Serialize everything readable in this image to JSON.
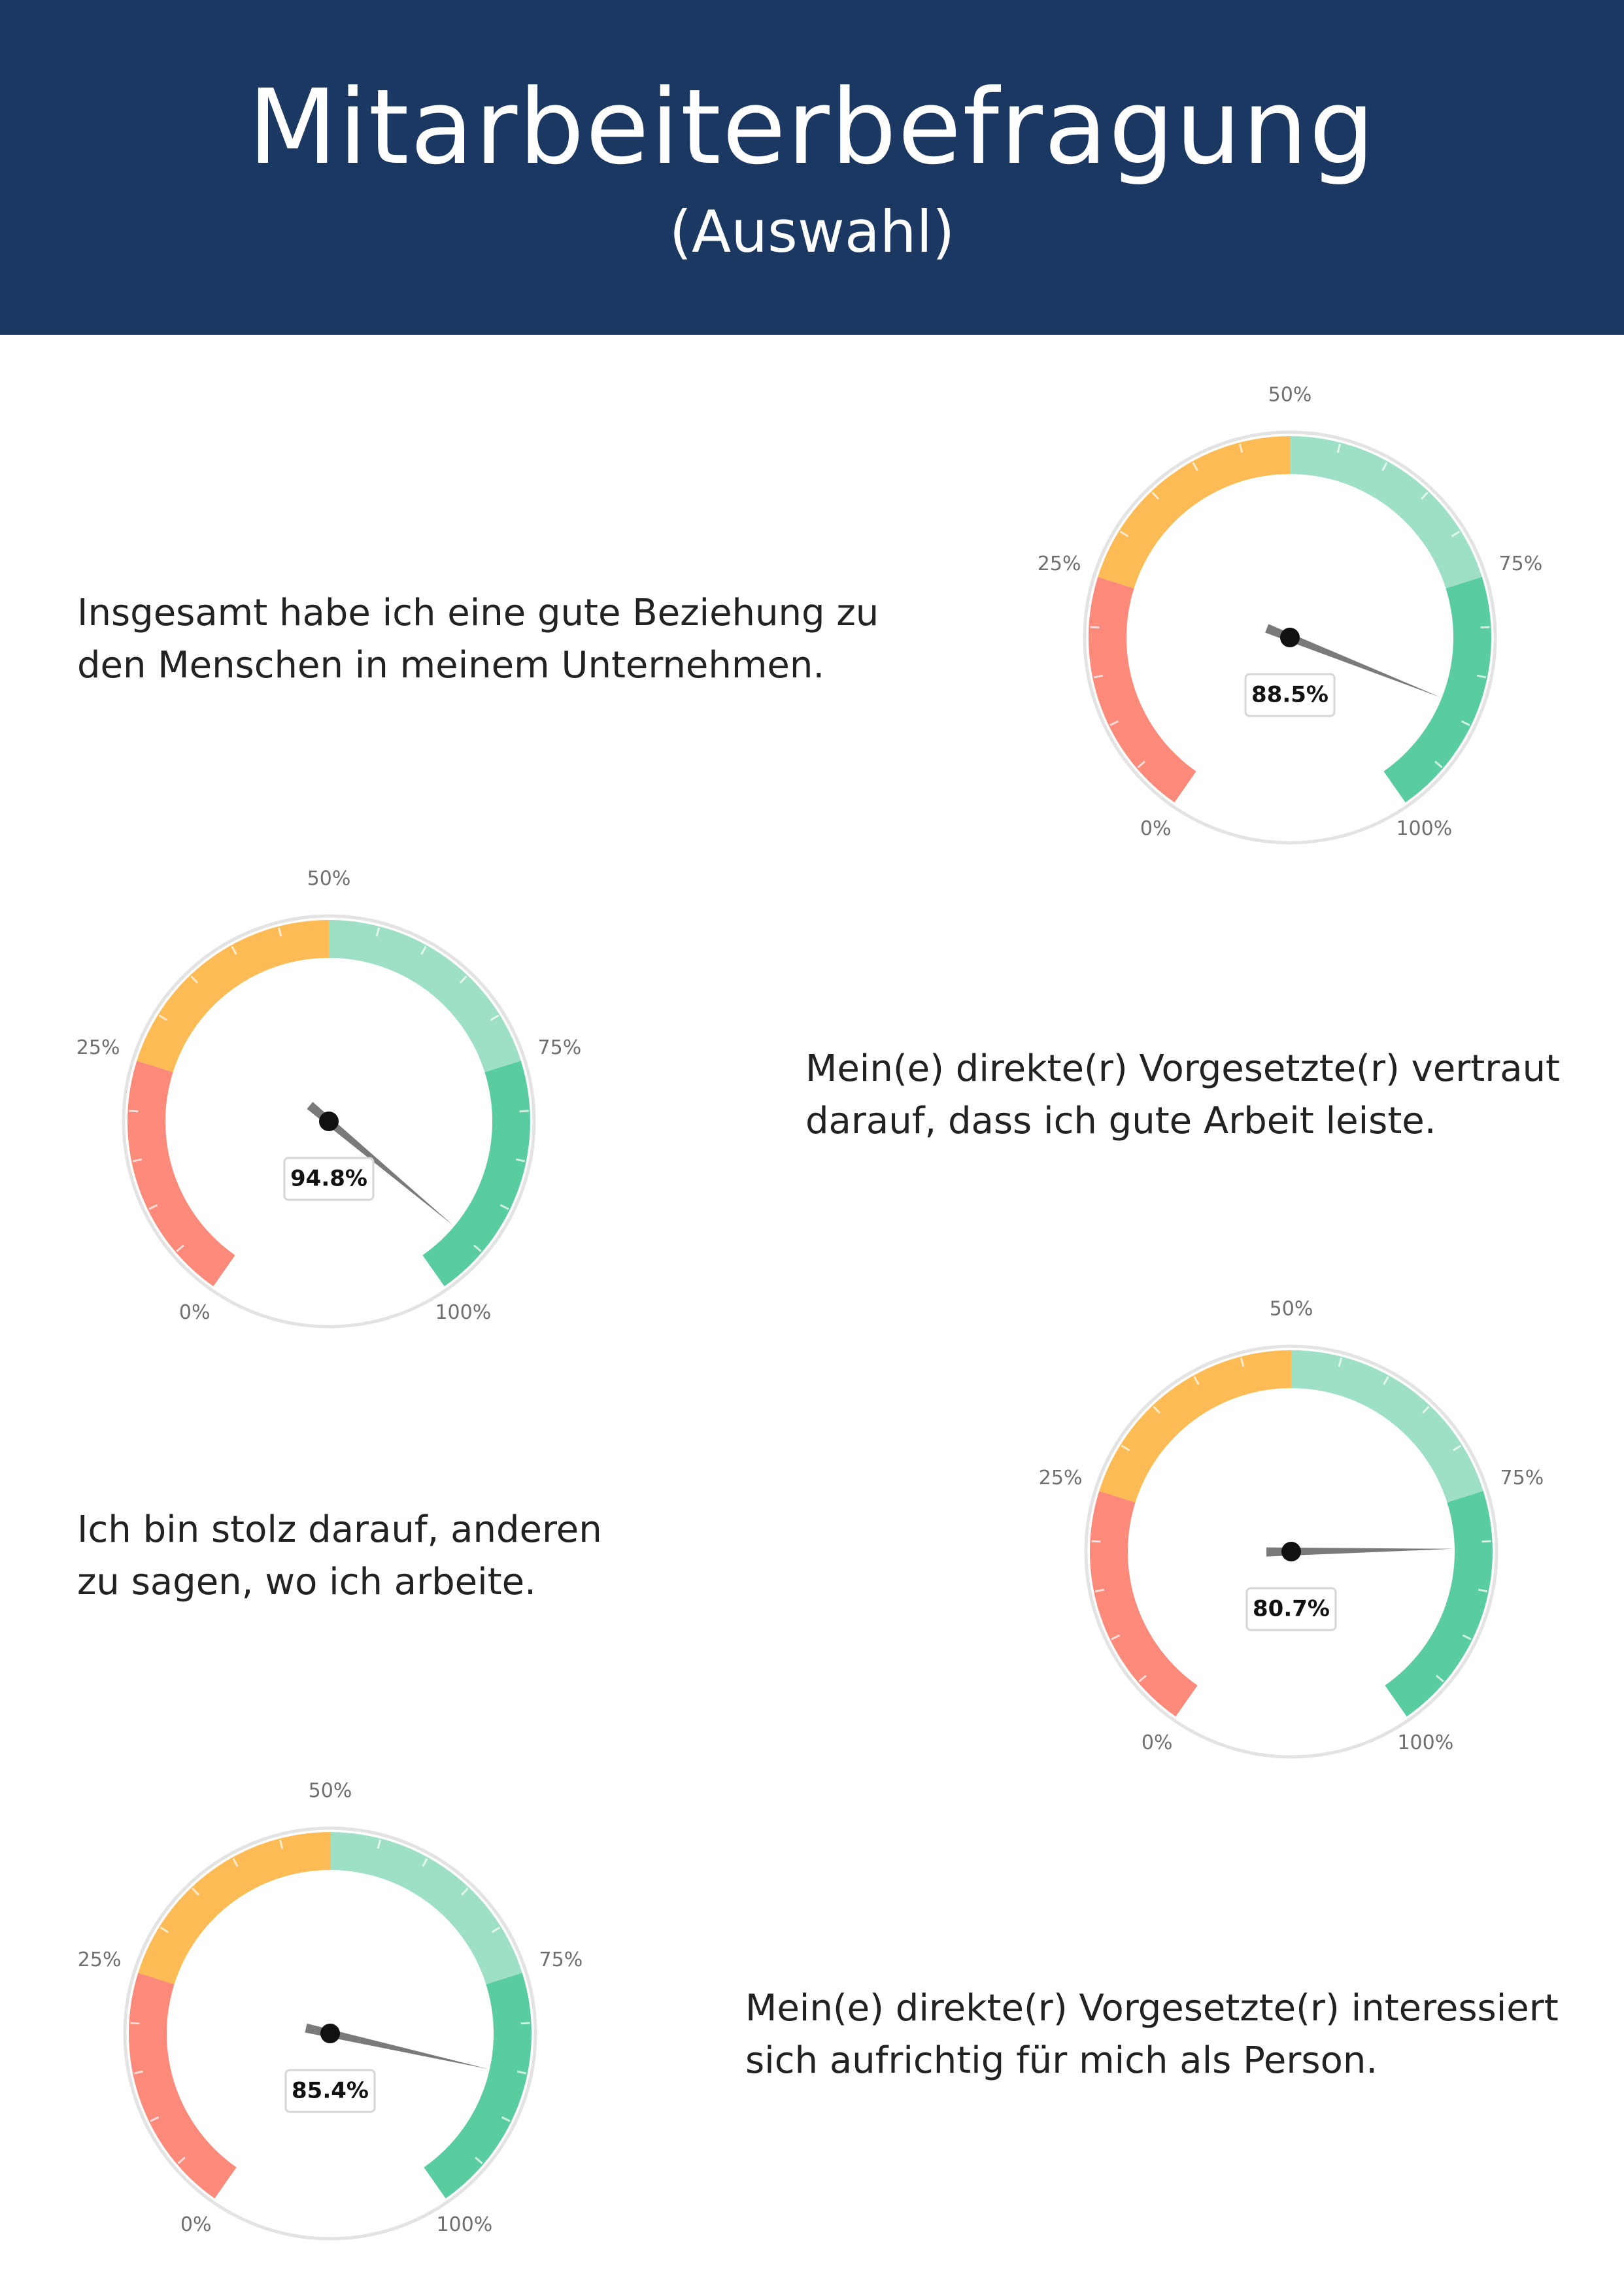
{
  "header": {
    "title": "Mitarbeiterbefragung",
    "subtitle": "(Auswahl)"
  },
  "colors": {
    "header_bg": "#1b3862",
    "red": "#fb8a7a",
    "orange": "#fdbb55",
    "light_green": "#9de0c6",
    "green": "#5acda0"
  },
  "statements": [
    {
      "lines": [
        "Insgesamt habe ich eine gute Beziehung zu",
        "den Menschen in meinem Unternehmen."
      ]
    },
    {
      "lines": [
        "Mein(e) direkte(r) Vorgesetzte(r) vertraut",
        "darauf, dass ich gute Arbeit leiste."
      ]
    },
    {
      "lines": [
        "Ich bin stolz darauf, anderen",
        "zu sagen, wo ich arbeite."
      ]
    },
    {
      "lines": [
        "Mein(e) direkte(r) Vorgesetzte(r) interessiert",
        "sich aufrichtig für mich als Person."
      ]
    }
  ],
  "chart_data": [
    {
      "type": "gauge",
      "value": 88.5,
      "value_label": "88.5%",
      "range": [
        0,
        100
      ],
      "tick_labels": [
        "0%",
        "25%",
        "50%",
        "75%",
        "100%"
      ],
      "bands": [
        {
          "from": 0,
          "to": 25,
          "color": "red"
        },
        {
          "from": 25,
          "to": 50,
          "color": "orange"
        },
        {
          "from": 50,
          "to": 75,
          "color": "light_green"
        },
        {
          "from": 75,
          "to": 100,
          "color": "green"
        }
      ]
    },
    {
      "type": "gauge",
      "value": 94.8,
      "value_label": "94.8%",
      "range": [
        0,
        100
      ],
      "tick_labels": [
        "0%",
        "25%",
        "50%",
        "75%",
        "100%"
      ],
      "bands": [
        {
          "from": 0,
          "to": 25,
          "color": "red"
        },
        {
          "from": 25,
          "to": 50,
          "color": "orange"
        },
        {
          "from": 50,
          "to": 75,
          "color": "light_green"
        },
        {
          "from": 75,
          "to": 100,
          "color": "green"
        }
      ]
    },
    {
      "type": "gauge",
      "value": 80.7,
      "value_label": "80.7%",
      "range": [
        0,
        100
      ],
      "tick_labels": [
        "0%",
        "25%",
        "50%",
        "75%",
        "100%"
      ],
      "bands": [
        {
          "from": 0,
          "to": 25,
          "color": "red"
        },
        {
          "from": 25,
          "to": 50,
          "color": "orange"
        },
        {
          "from": 50,
          "to": 75,
          "color": "light_green"
        },
        {
          "from": 75,
          "to": 100,
          "color": "green"
        }
      ]
    },
    {
      "type": "gauge",
      "value": 85.4,
      "value_label": "85.4%",
      "range": [
        0,
        100
      ],
      "tick_labels": [
        "0%",
        "25%",
        "50%",
        "75%",
        "100%"
      ],
      "bands": [
        {
          "from": 0,
          "to": 25,
          "color": "red"
        },
        {
          "from": 25,
          "to": 50,
          "color": "orange"
        },
        {
          "from": 50,
          "to": 75,
          "color": "light_green"
        },
        {
          "from": 75,
          "to": 100,
          "color": "green"
        }
      ]
    }
  ]
}
